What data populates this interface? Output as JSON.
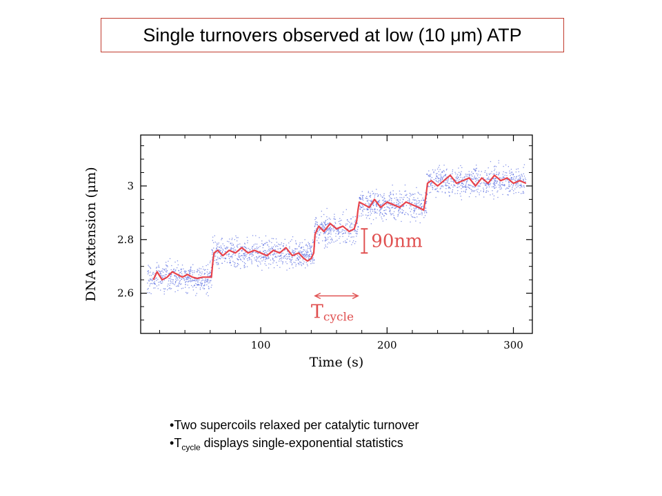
{
  "title": {
    "prefix": "Single turnovers observed at low (10 ",
    "unit_symbol": "μ",
    "suffix": "m) ATP"
  },
  "bullets": [
    {
      "marker": "•",
      "text": "Two supercoils relaxed per catalytic turnover"
    },
    {
      "marker": "•",
      "symbol": "T",
      "subscript": "cycle",
      "text": " displays single-exponential statistics"
    }
  ],
  "colors": {
    "title_border": "#c0392b",
    "trace": "#e8424a",
    "scatter": "#5a6ee0",
    "annotation": "#e05050"
  },
  "chart_data": {
    "type": "line",
    "xlabel": "Time (s)",
    "ylabel": "DNA extension (μm)",
    "xlim": [
      5,
      315
    ],
    "ylim": [
      2.45,
      3.19
    ],
    "xticks": [
      100,
      200,
      300
    ],
    "yticks": [
      2.6,
      2.8,
      3.0
    ],
    "ytick_labels": [
      "2.6",
      "2.8",
      "3"
    ],
    "grid": false,
    "series": [
      {
        "kind": "smoothed trace",
        "x": [
          15,
          18,
          22,
          26,
          30,
          34,
          38,
          42,
          46,
          50,
          54,
          58,
          61,
          62,
          63,
          66,
          70,
          75,
          80,
          85,
          90,
          95,
          100,
          105,
          110,
          115,
          120,
          125,
          130,
          134,
          137,
          140,
          142,
          143,
          146,
          150,
          155,
          160,
          165,
          170,
          174,
          176,
          177,
          178,
          182,
          186,
          190,
          195,
          200,
          205,
          210,
          215,
          220,
          225,
          229,
          231,
          232,
          235,
          240,
          245,
          250,
          255,
          260,
          265,
          270,
          275,
          280,
          285,
          290,
          295,
          300,
          305,
          310
        ],
        "y": [
          2.65,
          2.68,
          2.65,
          2.66,
          2.68,
          2.67,
          2.66,
          2.67,
          2.66,
          2.655,
          2.66,
          2.66,
          2.66,
          2.71,
          2.75,
          2.76,
          2.74,
          2.76,
          2.75,
          2.77,
          2.75,
          2.76,
          2.75,
          2.74,
          2.76,
          2.75,
          2.77,
          2.74,
          2.75,
          2.73,
          2.72,
          2.73,
          2.75,
          2.82,
          2.85,
          2.83,
          2.86,
          2.84,
          2.85,
          2.83,
          2.84,
          2.87,
          2.91,
          2.94,
          2.93,
          2.92,
          2.95,
          2.92,
          2.94,
          2.93,
          2.92,
          2.94,
          2.93,
          2.92,
          2.91,
          2.97,
          3.01,
          3.02,
          3.0,
          3.02,
          3.04,
          3.01,
          3.02,
          3.03,
          3.0,
          3.03,
          3.01,
          3.04,
          3.02,
          3.03,
          3.01,
          3.02,
          3.01
        ]
      },
      {
        "kind": "raw points",
        "plateaus": [
          {
            "x": [
              10,
              61
            ],
            "y": 2.66
          },
          {
            "x": [
              61,
              142
            ],
            "y": 2.75
          },
          {
            "x": [
              142,
              177
            ],
            "y": 2.84
          },
          {
            "x": [
              177,
              231
            ],
            "y": 2.93
          },
          {
            "x": [
              231,
              310
            ],
            "y": 3.02
          }
        ],
        "spread": 0.045
      }
    ],
    "annotations": {
      "step_label": "90nm",
      "step_bar_y": [
        2.75,
        2.84
      ],
      "step_bar_x": 182,
      "cycle_arrow_x": [
        143,
        177
      ],
      "cycle_arrow_y": 2.59,
      "cycle_symbol": "T",
      "cycle_subscript": "cycle"
    }
  }
}
